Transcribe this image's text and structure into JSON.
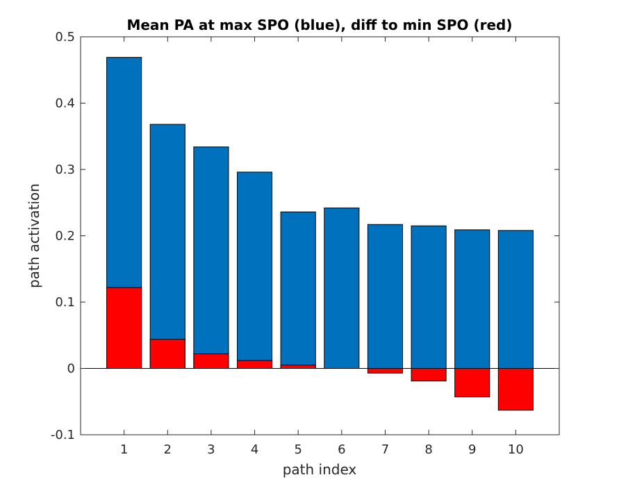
{
  "chart_data": {
    "type": "bar",
    "title": "Mean PA at max SPO (blue), diff to min SPO (red)",
    "xlabel": "path index",
    "ylabel": "path activation",
    "categories": [
      "1",
      "2",
      "3",
      "4",
      "5",
      "6",
      "7",
      "8",
      "9",
      "10"
    ],
    "xlim": [
      0,
      11
    ],
    "ylim": [
      -0.1,
      0.5
    ],
    "yticks": [
      -0.1,
      0,
      0.1,
      0.2,
      0.3,
      0.4,
      0.5
    ],
    "ytick_labels": [
      "-0.1",
      "0",
      "0.1",
      "0.2",
      "0.3",
      "0.4",
      "0.5"
    ],
    "series": [
      {
        "color": "#0072bd",
        "values": [
          0.469,
          0.368,
          0.334,
          0.296,
          0.236,
          0.242,
          0.217,
          0.215,
          0.209,
          0.208
        ]
      },
      {
        "color": "#ff0000",
        "values": [
          0.122,
          0.044,
          0.022,
          0.012,
          0.005,
          0.0,
          -0.007,
          -0.019,
          -0.043,
          -0.063
        ]
      }
    ],
    "grid": false,
    "legend": "none"
  }
}
